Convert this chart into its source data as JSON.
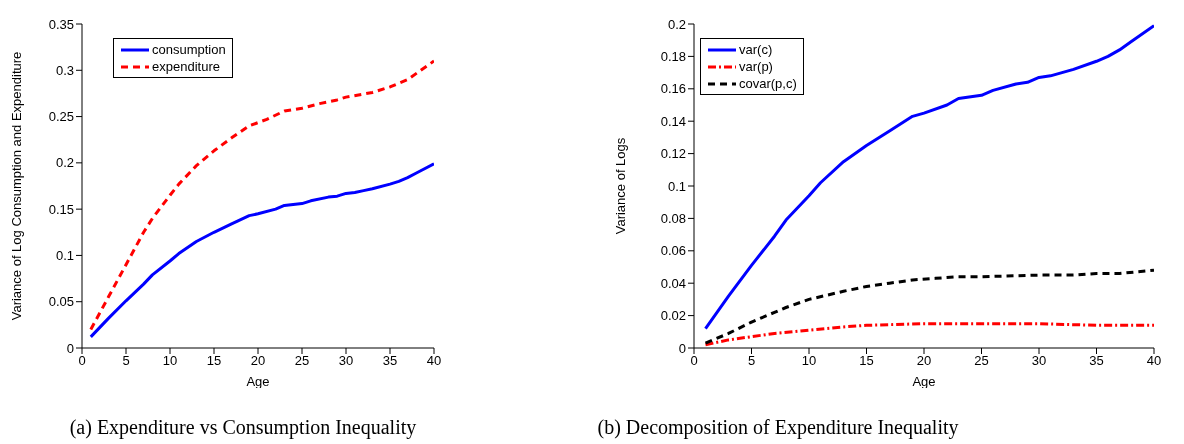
{
  "chart_data": [
    {
      "type": "line",
      "xlabel": "Age",
      "ylabel": "Variance of Log Consumption and Expenditure",
      "xlim": [
        0,
        40
      ],
      "xticks": [
        0,
        5,
        10,
        15,
        20,
        25,
        30,
        35,
        40
      ],
      "ylim": [
        0,
        0.35
      ],
      "yticks": [
        0,
        0.05,
        0.1,
        0.15,
        0.2,
        0.25,
        0.3,
        0.35
      ],
      "grid": false,
      "legend": "top left",
      "marker": "none",
      "annotations": [
        "(a) Expenditure vs Consumption Inequality"
      ],
      "series": [
        {
          "name": "consumption",
          "color": "#0000ff",
          "line_style": "solid",
          "x": [
            1,
            3,
            5,
            7,
            8,
            10,
            11,
            13,
            15,
            17,
            19,
            20,
            22,
            23,
            25,
            26,
            28,
            29,
            30,
            31,
            32,
            33,
            35,
            36,
            37,
            38,
            40
          ],
          "values": [
            0.012,
            0.032,
            0.051,
            0.069,
            0.079,
            0.094,
            0.102,
            0.115,
            0.125,
            0.134,
            0.143,
            0.145,
            0.15,
            0.154,
            0.156,
            0.159,
            0.163,
            0.164,
            0.167,
            0.168,
            0.17,
            0.172,
            0.177,
            0.18,
            0.184,
            0.189,
            0.199
          ]
        },
        {
          "name": "expenditure",
          "color": "#ff0000",
          "line_style": "dashed",
          "x": [
            1,
            3,
            5,
            7,
            8,
            10,
            11,
            13,
            15,
            17,
            19,
            21,
            23,
            25,
            27,
            29,
            30,
            33,
            35,
            37,
            40
          ],
          "values": [
            0.02,
            0.055,
            0.09,
            0.125,
            0.14,
            0.165,
            0.177,
            0.197,
            0.213,
            0.227,
            0.24,
            0.247,
            0.256,
            0.259,
            0.264,
            0.268,
            0.271,
            0.276,
            0.282,
            0.29,
            0.31
          ]
        }
      ]
    },
    {
      "type": "line",
      "xlabel": "Age",
      "ylabel": "Variance of Logs",
      "xlim": [
        0,
        40
      ],
      "xticks": [
        0,
        5,
        10,
        15,
        20,
        25,
        30,
        35,
        40
      ],
      "ylim": [
        0,
        0.2
      ],
      "yticks": [
        0,
        0.02,
        0.04,
        0.06,
        0.08,
        0.1,
        0.12,
        0.14,
        0.16,
        0.18,
        0.2
      ],
      "grid": false,
      "legend": "top left",
      "marker": "none",
      "annotations": [
        "(b) Decomposition of Expenditure Inequality"
      ],
      "series": [
        {
          "name": "var(c)",
          "color": "#0000ff",
          "line_style": "solid",
          "x": [
            1,
            3,
            5,
            7,
            8,
            10,
            11,
            13,
            15,
            17,
            19,
            20,
            22,
            23,
            25,
            26,
            28,
            29,
            30,
            31,
            32,
            33,
            35,
            36,
            37,
            38,
            40
          ],
          "values": [
            0.012,
            0.032,
            0.051,
            0.069,
            0.079,
            0.094,
            0.102,
            0.115,
            0.125,
            0.134,
            0.143,
            0.145,
            0.15,
            0.154,
            0.156,
            0.159,
            0.163,
            0.164,
            0.167,
            0.168,
            0.17,
            0.172,
            0.177,
            0.18,
            0.184,
            0.189,
            0.199
          ]
        },
        {
          "name": "var(p)",
          "color": "#ff0000",
          "line_style": "dotted",
          "x": [
            1,
            3,
            5,
            7,
            10,
            13,
            15,
            20,
            25,
            30,
            35,
            40
          ],
          "values": [
            0.002,
            0.005,
            0.007,
            0.009,
            0.011,
            0.013,
            0.014,
            0.015,
            0.015,
            0.015,
            0.014,
            0.014
          ]
        },
        {
          "name": "covar(p,c)",
          "color": "#000000",
          "line_style": "dashed",
          "x": [
            1,
            3,
            5,
            7,
            8,
            10,
            13,
            15,
            17,
            19,
            21,
            23,
            25,
            30,
            33,
            35,
            37,
            40
          ],
          "values": [
            0.003,
            0.009,
            0.016,
            0.022,
            0.025,
            0.03,
            0.035,
            0.038,
            0.04,
            0.042,
            0.043,
            0.044,
            0.044,
            0.045,
            0.045,
            0.046,
            0.046,
            0.048
          ]
        }
      ]
    }
  ]
}
